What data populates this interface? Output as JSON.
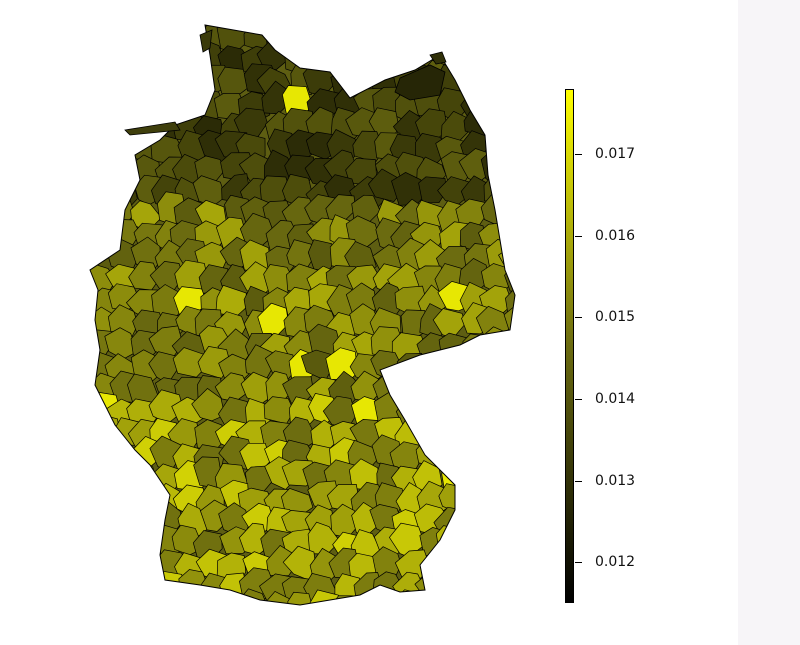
{
  "map": {
    "region": "Germany",
    "fill_scale": {
      "low": "#000000",
      "mid": "#6b6b10",
      "high": "#ffff00"
    },
    "boundary_color": "#000000",
    "background": "#ffffff"
  },
  "legend": {
    "min": 0.0115,
    "max": 0.0178,
    "ticks": [
      {
        "value": 0.017,
        "label": "0.017"
      },
      {
        "value": 0.016,
        "label": "0.016"
      },
      {
        "value": 0.015,
        "label": "0.015"
      },
      {
        "value": 0.014,
        "label": "0.014"
      },
      {
        "value": 0.013,
        "label": "0.013"
      },
      {
        "value": 0.012,
        "label": "0.012"
      }
    ]
  }
}
